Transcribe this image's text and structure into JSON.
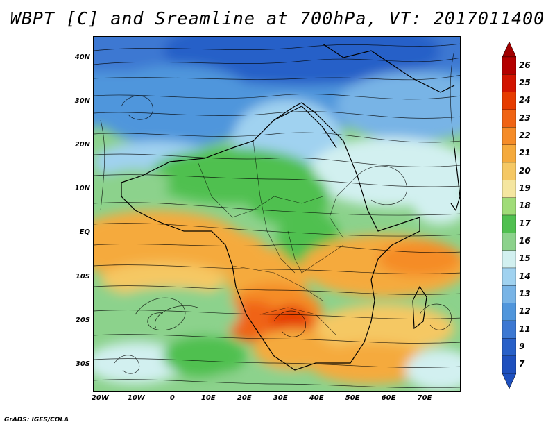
{
  "title": "WBPT [C] and Sreamline at 700hPa, VT: 2017011400",
  "credit": "GrADS: IGES/COLA",
  "lat_labels": [
    "40N",
    "30N",
    "20N",
    "10N",
    "EQ",
    "10S",
    "20S",
    "30S"
  ],
  "lat_values": [
    40,
    30,
    20,
    10,
    0,
    -10,
    -20,
    -30
  ],
  "lon_labels": [
    "20W",
    "10W",
    "0",
    "10E",
    "20E",
    "30E",
    "40E",
    "50E",
    "60E",
    "70E"
  ],
  "lon_values": [
    -20,
    -10,
    0,
    10,
    20,
    30,
    40,
    50,
    60,
    70
  ],
  "extent": {
    "lon_min": -22,
    "lon_max": 80,
    "lat_min": -36,
    "lat_max": 45
  },
  "colorbar": {
    "labels": [
      "26",
      "25",
      "24",
      "23",
      "22",
      "21",
      "20",
      "19",
      "18",
      "17",
      "16",
      "15",
      "14",
      "13",
      "12",
      "11",
      "9",
      "7"
    ],
    "colors": [
      "#b40000",
      "#d21400",
      "#e63c00",
      "#f06414",
      "#f58c28",
      "#f5aa3c",
      "#f5c864",
      "#f5e6a0",
      "#a0dc78",
      "#50c050",
      "#8cd28c",
      "#d2f0f0",
      "#a0d2f0",
      "#78b4e6",
      "#5096dc",
      "#3c78d2",
      "#2860c8",
      "#1e50be"
    ],
    "top_arrow_color": "#a00000",
    "bottom_arrow_color": "#1e50be"
  }
}
